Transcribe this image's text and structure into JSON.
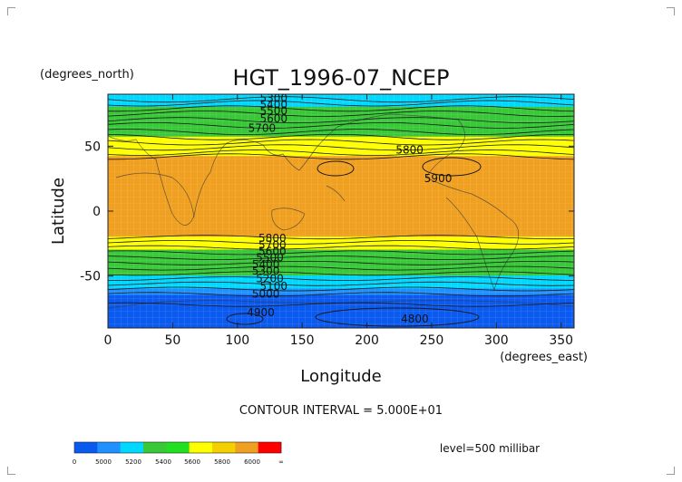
{
  "title": "HGT_1996-07_NCEP",
  "y_units": "(degrees_north)",
  "x_units": "(degrees_east)",
  "xlabel": "Longitude",
  "ylabel": "Latitude",
  "contour_interval": "CONTOUR INTERVAL = 5.000E+01",
  "level": "level=500 millibar",
  "x_ticks": [
    "0",
    "50",
    "100",
    "150",
    "200",
    "250",
    "300",
    "350"
  ],
  "y_ticks": [
    "50",
    "0",
    "-50"
  ],
  "contour_labels": [
    "5300",
    "5400",
    "5500",
    "5600",
    "5700",
    "5800",
    "5900",
    "5800",
    "5700",
    "5600",
    "5500",
    "5400",
    "5300",
    "5200",
    "5100",
    "5000",
    "4900",
    "4800"
  ],
  "colorbar": {
    "labels": [
      "0",
      "5000",
      "5200",
      "5400",
      "5600",
      "5800",
      "6000",
      "∞"
    ],
    "colors": [
      "#0a5af0",
      "#1e90ff",
      "#00d8ff",
      "#38c838",
      "#20e020",
      "#ffff00",
      "#f5d000",
      "#f0a020",
      "#ff0000"
    ]
  },
  "chart_data": {
    "type": "heatmap",
    "title": "HGT_1996-07_NCEP",
    "xlabel": "Longitude",
    "ylabel": "Latitude",
    "xlim": [
      0,
      360
    ],
    "ylim": [
      -90,
      90
    ],
    "units_x": "degrees_east",
    "units_y": "degrees_north",
    "level": "500 millibar",
    "contour_interval": 50,
    "bands": [
      {
        "lat_from": 80,
        "lat_to": 90,
        "value_range": [
          5200,
          5400
        ],
        "color": "#00d8ff"
      },
      {
        "lat_from": 57,
        "lat_to": 80,
        "value_range": [
          5400,
          5600
        ],
        "color": "#38c838"
      },
      {
        "lat_from": 42,
        "lat_to": 57,
        "value_range": [
          5600,
          5800
        ],
        "color": "#ffff00"
      },
      {
        "lat_from": -20,
        "lat_to": 42,
        "value_range": [
          5800,
          6000
        ],
        "color": "#f0a020"
      },
      {
        "lat_from": -30,
        "lat_to": -20,
        "value_range": [
          5600,
          5800
        ],
        "color": "#ffff00"
      },
      {
        "lat_from": -50,
        "lat_to": -30,
        "value_range": [
          5400,
          5600
        ],
        "color": "#38c838"
      },
      {
        "lat_from": -60,
        "lat_to": -50,
        "value_range": [
          5200,
          5400
        ],
        "color": "#00d8ff"
      },
      {
        "lat_from": -65,
        "lat_to": -60,
        "value_range": [
          5000,
          5200
        ],
        "color": "#1e90ff"
      },
      {
        "lat_from": -90,
        "lat_to": -65,
        "value_range": [
          4800,
          5000
        ],
        "color": "#0a5af0"
      }
    ],
    "labeled_contours": [
      {
        "value": 5300,
        "lon": 128,
        "lat": 87
      },
      {
        "value": 5400,
        "lon": 128,
        "lat": 82
      },
      {
        "value": 5500,
        "lon": 128,
        "lat": 77
      },
      {
        "value": 5600,
        "lon": 128,
        "lat": 71
      },
      {
        "value": 5700,
        "lon": 119,
        "lat": 64
      },
      {
        "value": 5800,
        "lon": 233,
        "lat": 47
      },
      {
        "value": 5900,
        "lon": 255,
        "lat": 25
      },
      {
        "value": 5800,
        "lon": 127,
        "lat": -21
      },
      {
        "value": 5700,
        "lon": 127,
        "lat": -26
      },
      {
        "value": 5600,
        "lon": 127,
        "lat": -31
      },
      {
        "value": 5500,
        "lon": 125,
        "lat": -36
      },
      {
        "value": 5400,
        "lon": 122,
        "lat": -41
      },
      {
        "value": 5300,
        "lon": 122,
        "lat": -46
      },
      {
        "value": 5200,
        "lon": 125,
        "lat": -52
      },
      {
        "value": 5100,
        "lon": 128,
        "lat": -58
      },
      {
        "value": 5000,
        "lon": 122,
        "lat": -64
      },
      {
        "value": 4900,
        "lon": 118,
        "lat": -78
      },
      {
        "value": 4800,
        "lon": 237,
        "lat": -83
      }
    ]
  }
}
